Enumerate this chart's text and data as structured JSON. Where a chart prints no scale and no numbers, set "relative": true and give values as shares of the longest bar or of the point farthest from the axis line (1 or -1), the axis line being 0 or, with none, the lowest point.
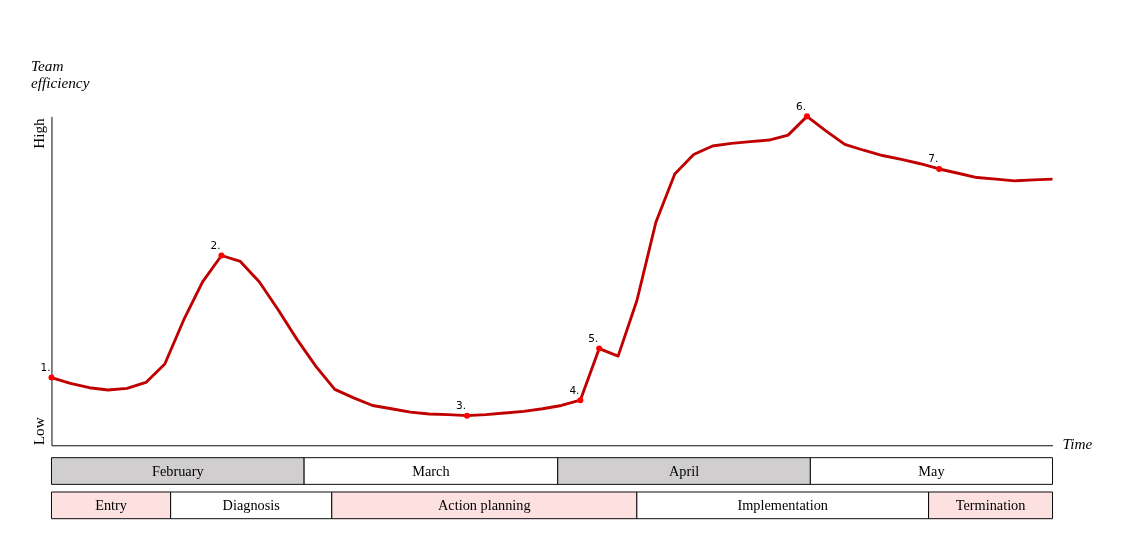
{
  "chart_data": [
    {
      "type": "line",
      "relative": true,
      "xlabel": "Time",
      "ylabel": "Team efficiency",
      "categories": [
        null,
        null,
        null,
        null,
        null,
        null,
        null,
        null,
        null,
        null,
        null,
        null,
        null,
        null,
        null,
        null,
        null,
        null,
        null,
        null,
        null,
        null,
        null,
        null,
        null,
        null,
        null,
        null,
        null,
        null,
        null,
        null,
        null,
        null,
        null,
        null,
        null,
        null,
        null,
        null,
        null,
        null,
        null,
        null,
        null,
        null,
        null,
        null,
        null,
        null,
        null,
        null,
        null,
        null
      ],
      "series": [
        {
          "color": "#c00000",
          "values": [
            0.206,
            0.188,
            0.175,
            0.168,
            0.173,
            0.191,
            0.247,
            0.381,
            0.497,
            0.577,
            0.559,
            0.497,
            0.412,
            0.322,
            0.24,
            0.17,
            0.144,
            0.121,
            0.111,
            0.101,
            0.095,
            0.093,
            0.09,
            0.093,
            0.098,
            0.103,
            0.111,
            0.121,
            0.137,
            0.294,
            0.271,
            0.441,
            0.678,
            0.825,
            0.884,
            0.91,
            0.918,
            0.923,
            0.928,
            0.943,
            1,
            0.956,
            0.915,
            0.897,
            0.881,
            0.869,
            0.856,
            0.84,
            0.827,
            0.814,
            0.809,
            0.804,
            0.807,
            0.809
          ]
        }
      ],
      "annotations": [
        "Low",
        "High",
        {
          "text": "1.",
          "y": 0.206
        },
        {
          "text": "2.",
          "y": 0.577
        },
        {
          "text": "3.",
          "y": 0.09
        },
        {
          "text": "4.",
          "y": 0.137
        },
        {
          "text": "5.",
          "y": 0.294
        },
        {
          "text": "6.",
          "y": 1
        },
        {
          "text": "7.",
          "y": 0.84
        }
      ]
    },
    {
      "type": "other",
      "categories": [
        "February",
        "March",
        "April",
        "May"
      ],
      "colors": [
        "#d0cece",
        "#ffffff",
        "#d0cece",
        "#ffffff"
      ]
    },
    {
      "type": "other",
      "categories": [
        "Entry",
        "Diagnosis",
        "Action planning",
        "Implementation",
        "Termination"
      ],
      "colors": [
        "#fde0e0",
        "#ffffff",
        "#fde0e0",
        "#ffffff",
        "#fde0e0"
      ]
    }
  ]
}
